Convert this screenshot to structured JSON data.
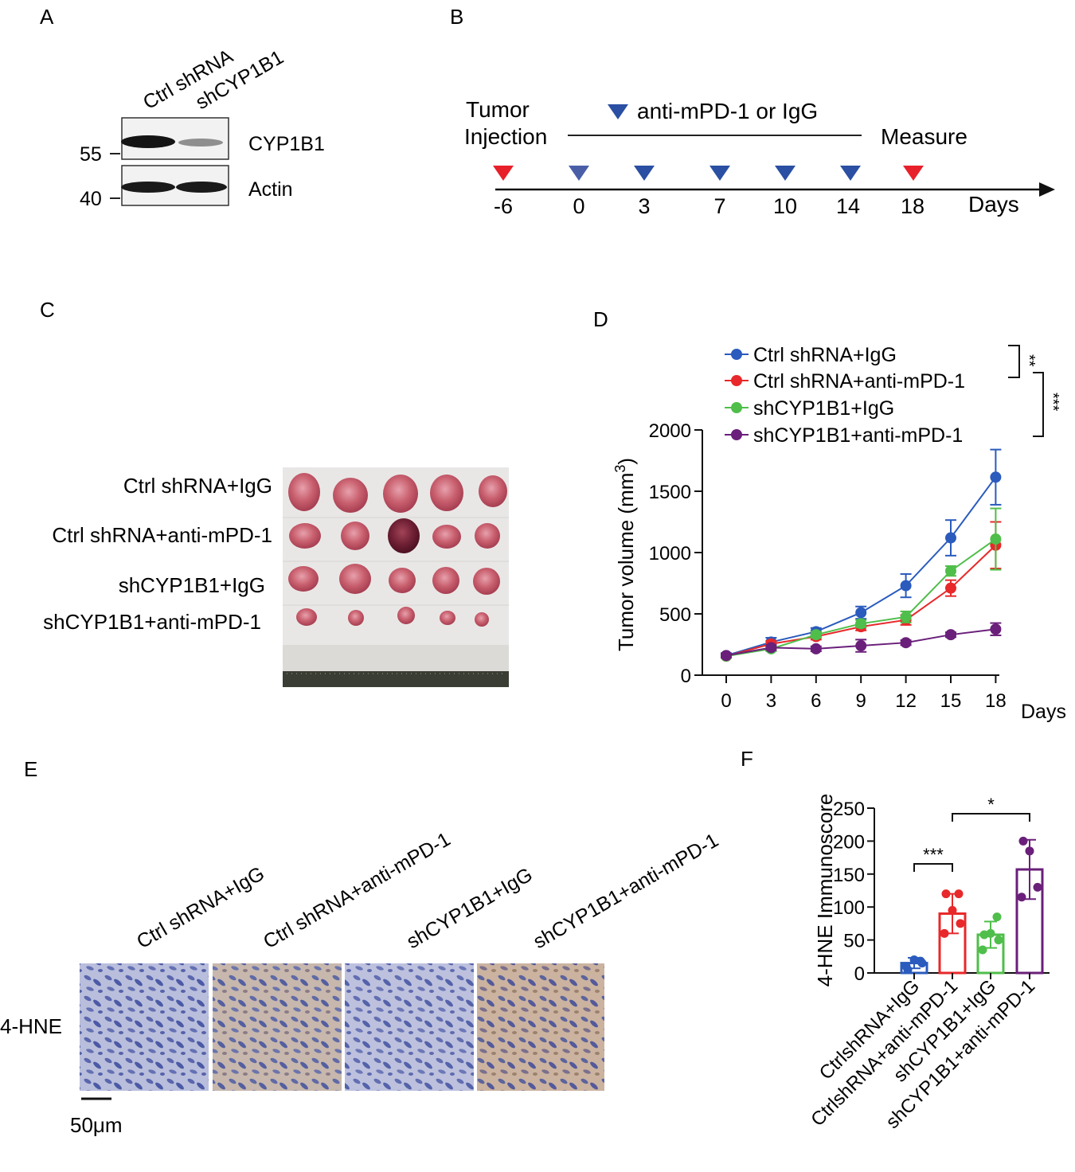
{
  "panels": {
    "A": {
      "letter": "A",
      "lanes": [
        "Ctrl shRNA",
        "shCYP1B1"
      ],
      "blots": [
        "CYP1B1",
        "Actin"
      ],
      "markers": [
        "55",
        "40"
      ]
    },
    "B": {
      "letter": "B",
      "tumor_label_1": "Tumor",
      "tumor_label_2": "Injection",
      "treatment_label": "anti-mPD-1 or IgG",
      "measure_label": "Measure",
      "axis_label": "Days",
      "days": [
        "-6",
        "0",
        "3",
        "7",
        "10",
        "14",
        "18"
      ],
      "colors": {
        "red": "#e8202a",
        "blue": "#2a4fa3"
      }
    },
    "C": {
      "letter": "C",
      "rows": [
        "Ctrl shRNA+IgG",
        "Ctrl shRNA+anti-mPD-1",
        "shCYP1B1+IgG",
        "shCYP1B1+anti-mPD-1"
      ]
    },
    "E": {
      "letter": "E",
      "columns": [
        "Ctrl shRNA+IgG",
        "Ctrl shRNA+anti-mPD-1",
        "shCYP1B1+IgG",
        "shCYP1B1+anti-mPD-1"
      ],
      "row_label": "4-HNE",
      "scale_bar": "50μm"
    }
  },
  "chart_data": [
    {
      "panel": "D",
      "letter": "D",
      "type": "line",
      "xlabel": "Days",
      "ylabel": "Tumor volume (mm³)",
      "ylabel_main": "Tumor volume (mm",
      "ylabel_sup": "3",
      "ylabel_close": ")",
      "x": [
        0,
        3,
        6,
        9,
        12,
        15,
        18
      ],
      "xlim": [
        0,
        18
      ],
      "ylim": [
        0,
        2000
      ],
      "yticks": [
        0,
        500,
        1000,
        1500,
        2000
      ],
      "series": [
        {
          "name": "Ctrl shRNA+IgG",
          "color": "#2a5bbd",
          "values": [
            160,
            270,
            355,
            510,
            730,
            1120,
            1615
          ],
          "err": [
            20,
            35,
            30,
            50,
            95,
            145,
            225
          ]
        },
        {
          "name": "Ctrl shRNA+anti-mPD-1",
          "color": "#e8282a",
          "values": [
            155,
            255,
            315,
            395,
            450,
            710,
            1060
          ],
          "err": [
            15,
            25,
            25,
            30,
            40,
            65,
            190
          ]
        },
        {
          "name": "shCYP1B1+IgG",
          "color": "#4fbe4a",
          "values": [
            155,
            215,
            330,
            420,
            475,
            850,
            1110
          ],
          "err": [
            15,
            20,
            25,
            30,
            45,
            40,
            250
          ]
        },
        {
          "name": "shCYP1B1+anti-mPD-1",
          "color": "#6a1f7a",
          "values": [
            160,
            225,
            215,
            240,
            265,
            330,
            375
          ],
          "err": [
            15,
            20,
            20,
            50,
            20,
            20,
            50
          ]
        }
      ],
      "significance": [
        "**",
        "***"
      ]
    },
    {
      "panel": "F",
      "letter": "F",
      "type": "bar",
      "ylabel": "4-HNE Immunoscore",
      "ylim": [
        0,
        250
      ],
      "yticks": [
        0,
        50,
        100,
        150,
        200,
        250
      ],
      "categories": [
        "CtrlshRNA+IgG",
        "CtrlshRNA+anti-mPD-1",
        "shCYP1B1+IgG",
        "shCYP1B1+anti-mPD-1"
      ],
      "values": [
        15,
        90,
        58,
        157
      ],
      "err": [
        8,
        30,
        20,
        45
      ],
      "colors": [
        "#2a5bbd",
        "#e8282a",
        "#4fbe4a",
        "#6a1f7a"
      ],
      "points": [
        [
          10,
          15,
          20,
          5,
          18
        ],
        [
          60,
          75,
          95,
          120,
          120
        ],
        [
          35,
          50,
          60,
          58,
          85
        ],
        [
          115,
          130,
          185,
          200
        ]
      ],
      "significance": [
        {
          "label": "***",
          "from": 0,
          "to": 1
        },
        {
          "label": "*",
          "from": 1,
          "to": 3
        }
      ]
    }
  ]
}
